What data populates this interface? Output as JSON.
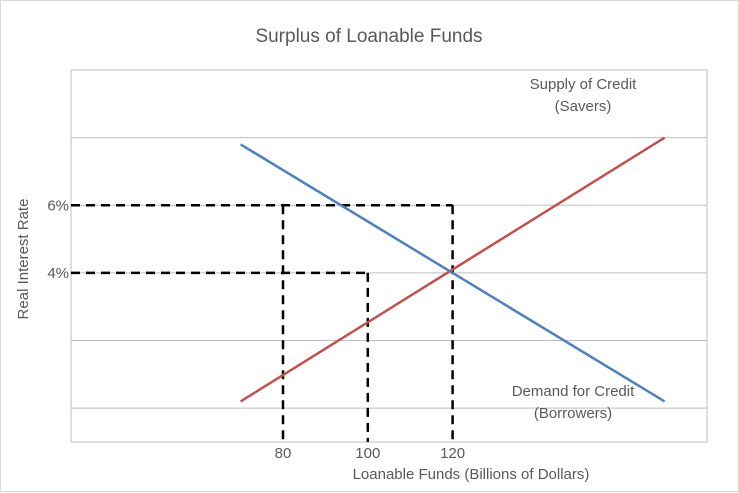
{
  "chart_data": {
    "type": "line",
    "title": "Surplus of Loanable Funds",
    "xlabel": "Loanable Funds (Billions of Dollars)",
    "ylabel": "Real Interest Rate",
    "xlim": [
      30,
      180
    ],
    "ylim": [
      -1,
      10
    ],
    "grid_y": [
      0,
      2,
      4,
      6,
      8
    ],
    "series": [
      {
        "name": "Supply of Credit (Savers)",
        "label_lines": [
          "Supply of Credit",
          "(Savers)"
        ],
        "color": "#C0504D",
        "x": [
          70,
          170
        ],
        "y": [
          0.2,
          8.0
        ]
      },
      {
        "name": "Demand for Credit (Borrowers)",
        "label_lines": [
          "Demand for Credit",
          "(Borrowers)"
        ],
        "color": "#4F81BD",
        "x": [
          70,
          170
        ],
        "y": [
          7.8,
          0.2
        ]
      }
    ],
    "reference_lines": [
      {
        "value": 6,
        "label": "6%",
        "x_from": 30,
        "x_to": 120
      },
      {
        "value": 4,
        "label": "4%",
        "x_from": 30,
        "x_to": 100
      }
    ],
    "x_markers": [
      {
        "value": 80,
        "label": "80",
        "y_top": 6
      },
      {
        "value": 100,
        "label": "100",
        "y_top": 4
      },
      {
        "value": 120,
        "label": "120",
        "y_top": 6
      }
    ]
  }
}
